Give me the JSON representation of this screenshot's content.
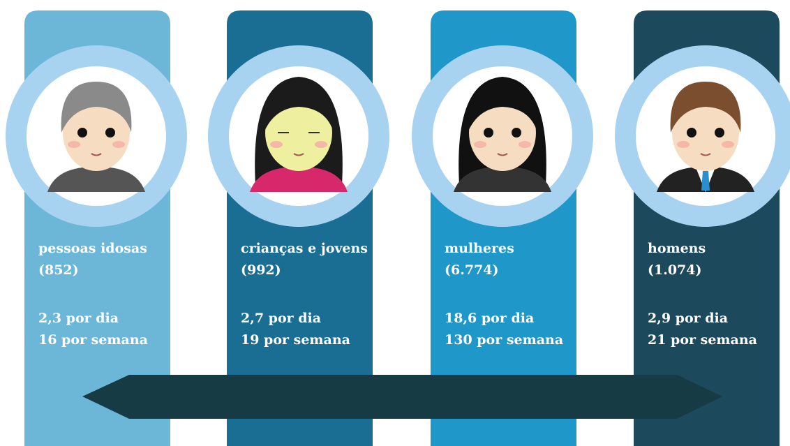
{
  "cards": [
    {
      "title": "pessoas idosas",
      "count": "(852)",
      "per_day": "2,3 por dia",
      "per_week": "16 por semana"
    },
    {
      "title": "crianças e jovens",
      "count": "(992)",
      "per_day": "2,7 por dia",
      "per_week": "19 por semana"
    },
    {
      "title": "mulheres",
      "count": "(6.774)",
      "per_day": "18,6 por dia",
      "per_week": "130 por semana"
    },
    {
      "title": "homens",
      "count": "(1.074)",
      "per_day": "2,9 por dia",
      "per_week": "21 por semana"
    }
  ]
}
